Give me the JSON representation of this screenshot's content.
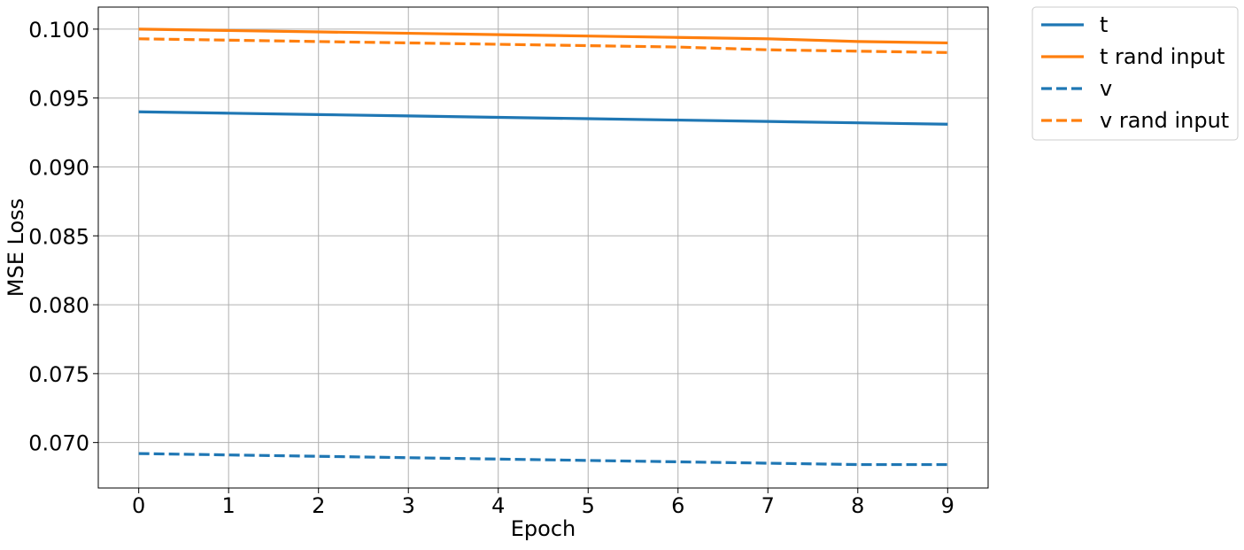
{
  "chart_data": {
    "type": "line",
    "title": "",
    "xlabel": "Epoch",
    "ylabel": "MSE Loss",
    "x": [
      0,
      1,
      2,
      3,
      4,
      5,
      6,
      7,
      8,
      9
    ],
    "xlim": [
      -0.45,
      9.45
    ],
    "ylim": [
      0.0667,
      0.1016
    ],
    "xticks": [
      "0",
      "1",
      "2",
      "3",
      "4",
      "5",
      "6",
      "7",
      "8",
      "9"
    ],
    "yticks": [
      {
        "value": 0.07,
        "label": "0.070"
      },
      {
        "value": 0.075,
        "label": "0.075"
      },
      {
        "value": 0.08,
        "label": "0.080"
      },
      {
        "value": 0.085,
        "label": "0.085"
      },
      {
        "value": 0.09,
        "label": "0.090"
      },
      {
        "value": 0.095,
        "label": "0.095"
      },
      {
        "value": 0.1,
        "label": "0.100"
      }
    ],
    "grid": true,
    "legend_position": "outside-top-right",
    "series": [
      {
        "name": "t",
        "color": "#1f77b4",
        "style": "solid",
        "values": [
          0.094,
          0.0939,
          0.0938,
          0.0937,
          0.0936,
          0.0935,
          0.0934,
          0.0933,
          0.0932,
          0.0931
        ]
      },
      {
        "name": "t rand input",
        "color": "#ff7f0e",
        "style": "solid",
        "values": [
          0.1,
          0.0999,
          0.0998,
          0.0997,
          0.0996,
          0.0995,
          0.0994,
          0.0993,
          0.0991,
          0.099
        ]
      },
      {
        "name": "v",
        "color": "#1f77b4",
        "style": "dashed",
        "values": [
          0.0692,
          0.0691,
          0.069,
          0.0689,
          0.0688,
          0.0687,
          0.0686,
          0.0685,
          0.0684,
          0.0684
        ]
      },
      {
        "name": "v rand input",
        "color": "#ff7f0e",
        "style": "dashed",
        "values": [
          0.0993,
          0.0992,
          0.0991,
          0.099,
          0.0989,
          0.0988,
          0.0987,
          0.0985,
          0.0984,
          0.0983
        ]
      }
    ]
  }
}
